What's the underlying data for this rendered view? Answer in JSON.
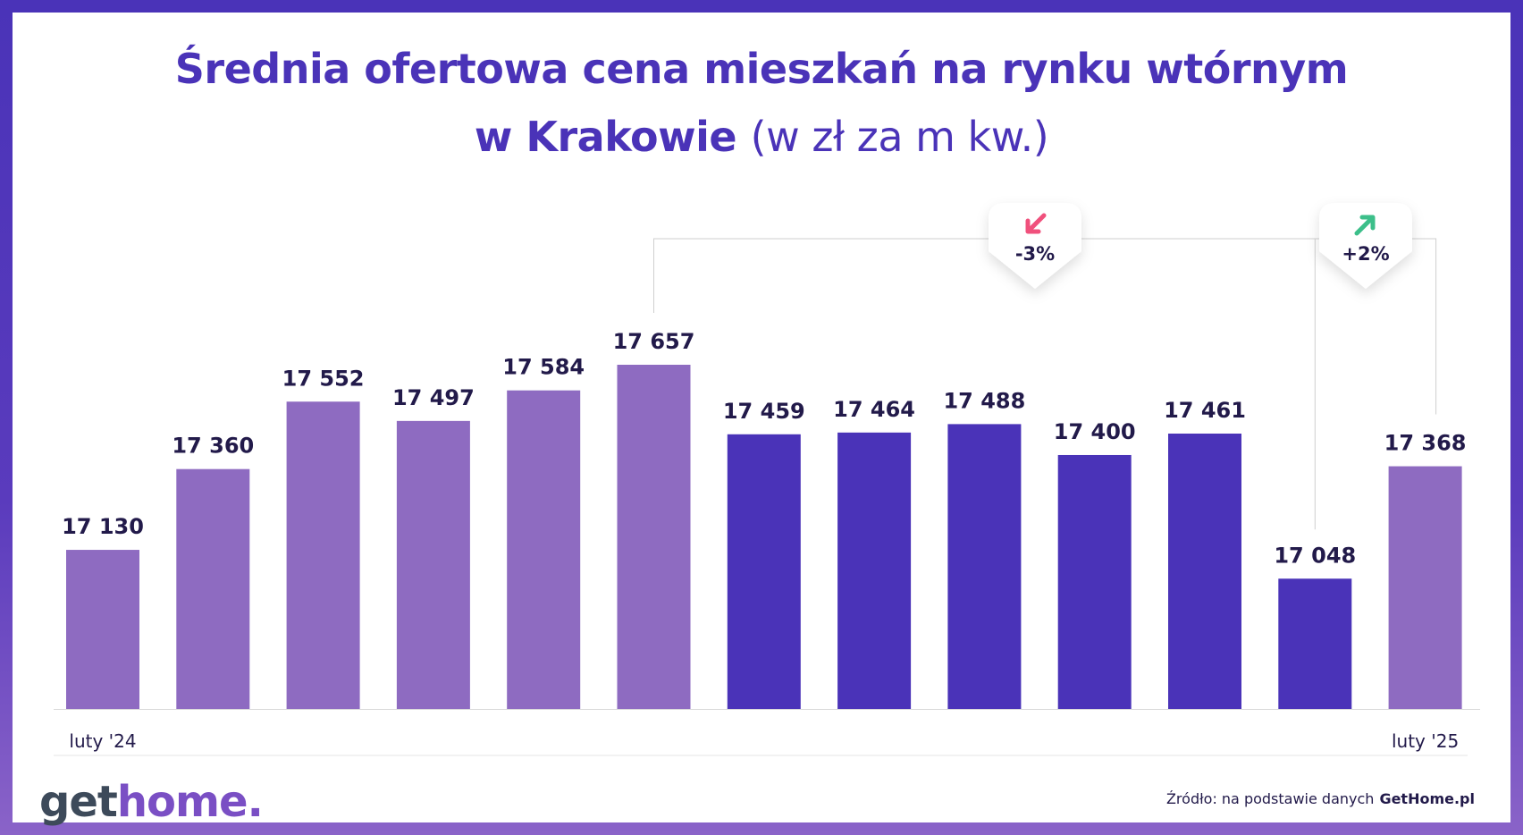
{
  "title_line1": "Średnia ofertowa cena mieszkań na rynku wtórnym",
  "title_line2_bold": "w Krakowie",
  "title_line2_unit": "(w zł za m kw.)",
  "chart_data": {
    "type": "bar",
    "title": "Średnia ofertowa cena mieszkań na rynku wtórnym w Krakowie (w zł za m kw.)",
    "categories": [
      "luty '24",
      "",
      "",
      "",
      "",
      "",
      "",
      "",
      "",
      "",
      "",
      "",
      "luty '25"
    ],
    "values": [
      17130,
      17360,
      17552,
      17497,
      17584,
      17657,
      17459,
      17464,
      17488,
      17400,
      17461,
      17048,
      17368
    ],
    "value_labels": [
      "17 130",
      "17 360",
      "17 552",
      "17 497",
      "17 584",
      "17 657",
      "17 459",
      "17 464",
      "17 488",
      "17 400",
      "17 461",
      "17 048",
      "17 368"
    ],
    "bar_colors": [
      "#8e6bc1",
      "#8e6bc1",
      "#8e6bc1",
      "#8e6bc1",
      "#8e6bc1",
      "#8e6bc1",
      "#4a33b8",
      "#4a33b8",
      "#4a33b8",
      "#4a33b8",
      "#4a33b8",
      "#4a33b8",
      "#8e6bc1"
    ],
    "annotations": [
      {
        "label": "-3%",
        "direction": "down",
        "from_index": 5,
        "to_index": 11,
        "color": "#f0507c"
      },
      {
        "label": "+2%",
        "direction": "up",
        "from_index": 11,
        "to_index": 12,
        "color": "#3cbf8a"
      }
    ],
    "grid": false
  },
  "footer": {
    "logo_get": "get",
    "logo_home": "home.",
    "source_text": "Źródło: na podstawie danych",
    "source_brand": "GetHome.pl"
  },
  "colors": {
    "light_bar": "#8e6bc1",
    "dark_bar": "#4a33b8",
    "title": "#4a33b8",
    "down_arrow": "#f0507c",
    "up_arrow": "#3cbf8a"
  }
}
